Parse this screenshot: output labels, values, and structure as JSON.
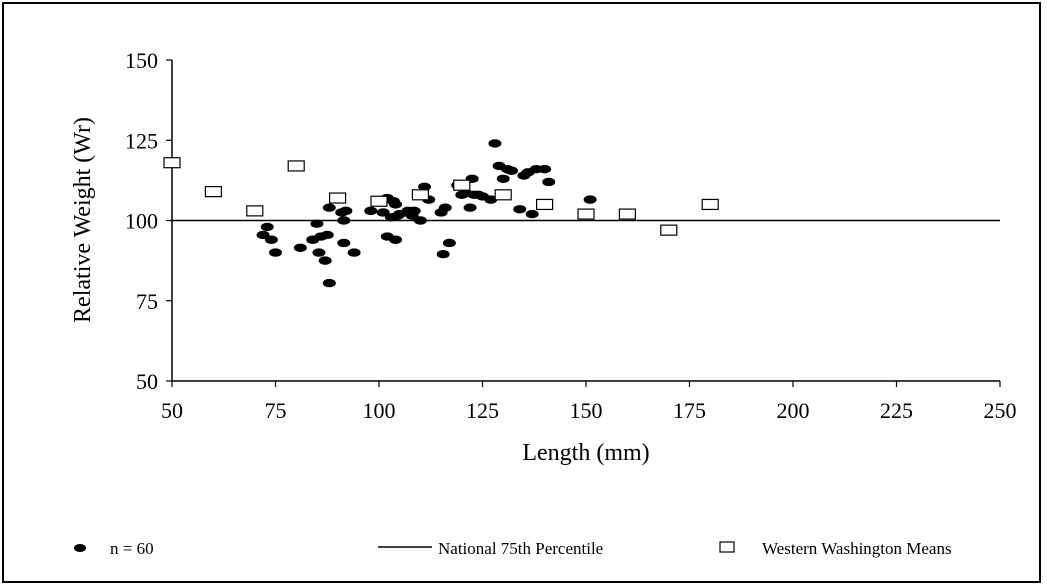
{
  "chart_data": {
    "type": "scatter",
    "title": "",
    "xlabel": "Length (mm)",
    "ylabel": "Relative Weight (Wr)",
    "xlim": [
      50,
      250
    ],
    "ylim": [
      50,
      150
    ],
    "xticks": [
      50,
      75,
      100,
      125,
      150,
      175,
      200,
      225,
      250
    ],
    "yticks": [
      50,
      75,
      100,
      125,
      150
    ],
    "grid": false,
    "legend_position": "bottom",
    "series": [
      {
        "name": "n = 60",
        "marker": "filled-ellipse",
        "color": "#000000",
        "points": [
          [
            72,
            95.5
          ],
          [
            73,
            98
          ],
          [
            74,
            94
          ],
          [
            75,
            90
          ],
          [
            81,
            91.5
          ],
          [
            84,
            94
          ],
          [
            85,
            99
          ],
          [
            85.5,
            90
          ],
          [
            86,
            95
          ],
          [
            87,
            87.5
          ],
          [
            87.5,
            95.5
          ],
          [
            88,
            104
          ],
          [
            88,
            80.5
          ],
          [
            91,
            102.5
          ],
          [
            91.5,
            100
          ],
          [
            91.5,
            93
          ],
          [
            92,
            103
          ],
          [
            94,
            90
          ],
          [
            98,
            103
          ],
          [
            101,
            102.5
          ],
          [
            102,
            107
          ],
          [
            102,
            95
          ],
          [
            103,
            101
          ],
          [
            103.5,
            106
          ],
          [
            104,
            105
          ],
          [
            104,
            94
          ],
          [
            104.5,
            101.5
          ],
          [
            105,
            102
          ],
          [
            107,
            103
          ],
          [
            108,
            101.5
          ],
          [
            108.5,
            103
          ],
          [
            110,
            100
          ],
          [
            111,
            110.5
          ],
          [
            112,
            106.5
          ],
          [
            115,
            102.5
          ],
          [
            115.5,
            89.5
          ],
          [
            116,
            104
          ],
          [
            117,
            93
          ],
          [
            119,
            111
          ],
          [
            120,
            108
          ],
          [
            121,
            108.5
          ],
          [
            122,
            104
          ],
          [
            122.5,
            113
          ],
          [
            123,
            108
          ],
          [
            124,
            108
          ],
          [
            125,
            107.5
          ],
          [
            127,
            106.5
          ],
          [
            128,
            124
          ],
          [
            129,
            117
          ],
          [
            130,
            113
          ],
          [
            131,
            116
          ],
          [
            132,
            115.5
          ],
          [
            134,
            103.5
          ],
          [
            135,
            114
          ],
          [
            136,
            115
          ],
          [
            137,
            102
          ],
          [
            138,
            116
          ],
          [
            140,
            116
          ],
          [
            141,
            112
          ],
          [
            151,
            106.5
          ]
        ]
      },
      {
        "name": "National 75th Percentile",
        "marker": "line",
        "color": "#000000",
        "points": [
          [
            50,
            100
          ],
          [
            250,
            100
          ]
        ]
      },
      {
        "name": "Western Washington Means",
        "marker": "open-square",
        "color": "#000000",
        "points": [
          [
            50,
            118
          ],
          [
            60,
            109
          ],
          [
            70,
            103
          ],
          [
            80,
            117
          ],
          [
            90,
            107
          ],
          [
            100,
            106
          ],
          [
            110,
            108
          ],
          [
            120,
            111
          ],
          [
            130,
            108
          ],
          [
            140,
            105
          ],
          [
            150,
            102
          ],
          [
            160,
            102
          ],
          [
            170,
            97
          ],
          [
            180,
            105
          ]
        ]
      }
    ]
  },
  "legend": {
    "item1": "n = 60",
    "item2": "National 75th Percentile",
    "item3": "Western Washington Means"
  }
}
